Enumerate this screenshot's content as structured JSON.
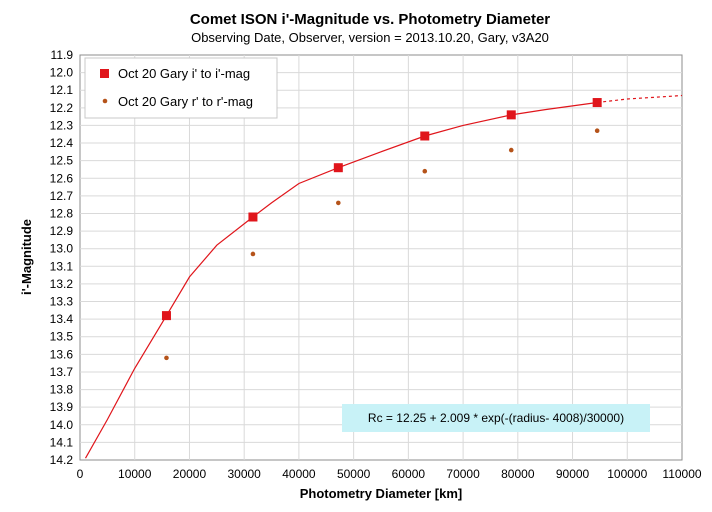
{
  "chart_data": {
    "type": "scatter",
    "title": "Comet ISON i'-Magnitude  vs. Photometry Diameter",
    "subtitle": "Observing Date, Observer, version = 2013.10.20, Gary, v3A20",
    "xlabel": "Photometry Diameter  [km]",
    "ylabel": "i'-Magnitude",
    "xlim": [
      0,
      110000
    ],
    "ylim": [
      11.9,
      14.2
    ],
    "y_inverted": true,
    "x_ticks": [
      "0",
      "10000",
      "20000",
      "30000",
      "40000",
      "50000",
      "60000",
      "70000",
      "80000",
      "90000",
      "100000",
      "110000"
    ],
    "y_ticks": [
      "11.9",
      "12.0",
      "12.1",
      "12.2",
      "12.3",
      "12.4",
      "12.5",
      "12.6",
      "12.7",
      "12.8",
      "12.9",
      "13.0",
      "13.1",
      "13.2",
      "13.3",
      "13.4",
      "13.5",
      "13.6",
      "13.7",
      "13.8",
      "13.9",
      "14.0",
      "14.1",
      "14.2"
    ],
    "grid": true,
    "legend_position": "top-left",
    "series": [
      {
        "name": "Oct 20 Gary i' to i'-mag",
        "marker": "square",
        "color": "#e0151b",
        "x": [
          15800,
          31600,
          47200,
          63000,
          78800,
          94500
        ],
        "y": [
          13.38,
          12.82,
          12.54,
          12.36,
          12.24,
          12.17
        ]
      },
      {
        "name": "Oct 20 Gary r' to r'-mag",
        "marker": "dot",
        "color": "#b5531a",
        "x": [
          15800,
          31600,
          47200,
          63000,
          78800,
          94500
        ],
        "y": [
          13.62,
          13.03,
          12.74,
          12.56,
          12.44,
          12.33
        ]
      }
    ],
    "fit": {
      "color": "#e0151b",
      "equation_label": "Rc = 12.25 + 2.009  * exp(-(radius- 4008)/30000)",
      "box_color": "#c8f2f7",
      "x": [
        1000,
        5000,
        10000,
        15800,
        20000,
        25000,
        31600,
        35000,
        40000,
        47200,
        55000,
        63000,
        70000,
        78800,
        85000,
        94500
      ],
      "y": [
        14.19,
        13.97,
        13.68,
        13.38,
        13.16,
        12.98,
        12.82,
        12.74,
        12.63,
        12.54,
        12.45,
        12.36,
        12.3,
        12.24,
        12.21,
        12.17
      ],
      "extension_x": [
        94500,
        100000,
        105000,
        110000
      ],
      "extension_y": [
        12.17,
        12.15,
        12.14,
        12.13
      ]
    }
  }
}
